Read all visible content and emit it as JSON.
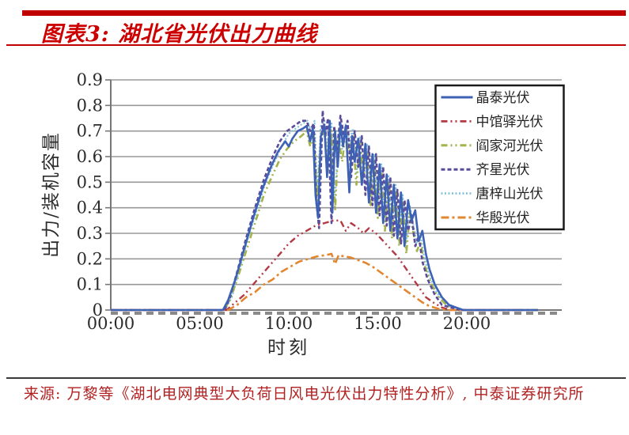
{
  "header": {
    "title": "图表3: 湖北省光伏出力曲线"
  },
  "footer": {
    "source": "来源: 万黎等《湖北电网典型大负荷日风电光伏出力特性分析》, 中泰证券研究所"
  },
  "chart_data": {
    "type": "line",
    "title": "湖北省光伏出力曲线",
    "xlabel": "时刻",
    "ylabel": "出力/装机容量",
    "x_unit": "hour_of_day",
    "xlim": [
      0,
      24
    ],
    "ylim": [
      0,
      0.9
    ],
    "grid": true,
    "legend_position": "upper-right",
    "ytick_labels": [
      "0",
      "0.1",
      "0.2",
      "0.3",
      "0.4",
      "0.5",
      "0.6",
      "0.7",
      "0.8",
      "0.9"
    ],
    "yticks": [
      0,
      0.1,
      0.2,
      0.3,
      0.4,
      0.5,
      0.6,
      0.7,
      0.8,
      0.9
    ],
    "xticks": [
      {
        "t": 0,
        "label": "00:00"
      },
      {
        "t": 5,
        "label": "05:00"
      },
      {
        "t": 10,
        "label": "10:00"
      },
      {
        "t": 15,
        "label": "15:00"
      },
      {
        "t": 20,
        "label": "20:00"
      }
    ],
    "draw_order": [
      4,
      2,
      3,
      1,
      5,
      0
    ],
    "series": [
      {
        "name": "晶泰光伏",
        "color": "#3d62b5",
        "dash": "",
        "width": 2.6,
        "points": [
          [
            0,
            0
          ],
          [
            6.3,
            0
          ],
          [
            6.6,
            0.04
          ],
          [
            7,
            0.12
          ],
          [
            7.5,
            0.24
          ],
          [
            8,
            0.36
          ],
          [
            8.5,
            0.47
          ],
          [
            9,
            0.56
          ],
          [
            9.4,
            0.62
          ],
          [
            9.8,
            0.66
          ],
          [
            10,
            0.64
          ],
          [
            10.2,
            0.67
          ],
          [
            10.5,
            0.7
          ],
          [
            10.8,
            0.71
          ],
          [
            11,
            0.72
          ],
          [
            11.2,
            0.66
          ],
          [
            11.35,
            0.71
          ],
          [
            11.5,
            0.45
          ],
          [
            11.65,
            0.36
          ],
          [
            11.8,
            0.68
          ],
          [
            12,
            0.72
          ],
          [
            12.15,
            0.52
          ],
          [
            12.3,
            0.74
          ],
          [
            12.45,
            0.38
          ],
          [
            12.6,
            0.7
          ],
          [
            12.75,
            0.56
          ],
          [
            12.9,
            0.73
          ],
          [
            13.05,
            0.64
          ],
          [
            13.2,
            0.72
          ],
          [
            13.4,
            0.46
          ],
          [
            13.55,
            0.68
          ],
          [
            13.7,
            0.58
          ],
          [
            13.9,
            0.67
          ],
          [
            14.1,
            0.49
          ],
          [
            14.3,
            0.65
          ],
          [
            14.5,
            0.42
          ],
          [
            14.7,
            0.61
          ],
          [
            14.9,
            0.38
          ],
          [
            15.1,
            0.57
          ],
          [
            15.3,
            0.34
          ],
          [
            15.5,
            0.53
          ],
          [
            15.7,
            0.31
          ],
          [
            15.9,
            0.49
          ],
          [
            16.1,
            0.28
          ],
          [
            16.3,
            0.46
          ],
          [
            16.5,
            0.25
          ],
          [
            16.7,
            0.43
          ],
          [
            16.9,
            0.35
          ],
          [
            17.1,
            0.39
          ],
          [
            17.3,
            0.27
          ],
          [
            17.5,
            0.31
          ],
          [
            17.7,
            0.22
          ],
          [
            17.9,
            0.16
          ],
          [
            18.2,
            0.1
          ],
          [
            18.6,
            0.05
          ],
          [
            19,
            0.02
          ],
          [
            19.4,
            0.01
          ],
          [
            19.8,
            0
          ],
          [
            24,
            0
          ]
        ]
      },
      {
        "name": "中馆驿光伏",
        "color": "#b33a45",
        "dash": "8 4 2 4 2 4",
        "width": 2.4,
        "points": [
          [
            0,
            0
          ],
          [
            6.5,
            0
          ],
          [
            7,
            0.03
          ],
          [
            7.5,
            0.06
          ],
          [
            8,
            0.1
          ],
          [
            8.5,
            0.14
          ],
          [
            9,
            0.18
          ],
          [
            9.5,
            0.22
          ],
          [
            10,
            0.26
          ],
          [
            10.5,
            0.29
          ],
          [
            11,
            0.31
          ],
          [
            11.5,
            0.33
          ],
          [
            12,
            0.34
          ],
          [
            12.5,
            0.35
          ],
          [
            12.9,
            0.35
          ],
          [
            13.2,
            0.31
          ],
          [
            13.5,
            0.34
          ],
          [
            13.9,
            0.32
          ],
          [
            14.2,
            0.3
          ],
          [
            14.5,
            0.32
          ],
          [
            14.9,
            0.3
          ],
          [
            15.3,
            0.27
          ],
          [
            15.7,
            0.24
          ],
          [
            16.1,
            0.21
          ],
          [
            16.5,
            0.17
          ],
          [
            16.9,
            0.13
          ],
          [
            17.3,
            0.09
          ],
          [
            17.7,
            0.05
          ],
          [
            18.1,
            0.03
          ],
          [
            18.6,
            0.01
          ],
          [
            19.1,
            0
          ],
          [
            24,
            0
          ]
        ]
      },
      {
        "name": "阎家河光伏",
        "color": "#a4b34a",
        "dash": "8 4 2 4 2 4",
        "width": 2.6,
        "points": [
          [
            0,
            0
          ],
          [
            6.35,
            0
          ],
          [
            6.7,
            0.04
          ],
          [
            7.1,
            0.12
          ],
          [
            7.6,
            0.23
          ],
          [
            8.1,
            0.34
          ],
          [
            8.6,
            0.45
          ],
          [
            9.1,
            0.53
          ],
          [
            9.5,
            0.59
          ],
          [
            9.9,
            0.63
          ],
          [
            10.3,
            0.66
          ],
          [
            10.7,
            0.68
          ],
          [
            11,
            0.7
          ],
          [
            11.2,
            0.64
          ],
          [
            11.4,
            0.69
          ],
          [
            11.6,
            0.43
          ],
          [
            11.8,
            0.66
          ],
          [
            12,
            0.71
          ],
          [
            12.2,
            0.55
          ],
          [
            12.4,
            0.7
          ],
          [
            12.6,
            0.39
          ],
          [
            12.8,
            0.67
          ],
          [
            13,
            0.58
          ],
          [
            13.2,
            0.7
          ],
          [
            13.4,
            0.61
          ],
          [
            13.6,
            0.68
          ],
          [
            13.8,
            0.49
          ],
          [
            14,
            0.65
          ],
          [
            14.2,
            0.52
          ],
          [
            14.4,
            0.62
          ],
          [
            14.6,
            0.41
          ],
          [
            14.8,
            0.58
          ],
          [
            15,
            0.36
          ],
          [
            15.2,
            0.54
          ],
          [
            15.4,
            0.31
          ],
          [
            15.6,
            0.5
          ],
          [
            15.8,
            0.28
          ],
          [
            16,
            0.46
          ],
          [
            16.2,
            0.25
          ],
          [
            16.4,
            0.42
          ],
          [
            16.6,
            0.22
          ],
          [
            16.8,
            0.38
          ],
          [
            17,
            0.3
          ],
          [
            17.2,
            0.23
          ],
          [
            17.4,
            0.27
          ],
          [
            17.6,
            0.18
          ],
          [
            17.9,
            0.12
          ],
          [
            18.3,
            0.06
          ],
          [
            18.7,
            0.03
          ],
          [
            19.1,
            0.01
          ],
          [
            19.5,
            0
          ],
          [
            24,
            0
          ]
        ]
      },
      {
        "name": "齐星光伏",
        "color": "#5a4b9b",
        "dash": "5 3",
        "width": 2.6,
        "points": [
          [
            0,
            0
          ],
          [
            6.4,
            0
          ],
          [
            6.7,
            0.05
          ],
          [
            7.1,
            0.15
          ],
          [
            7.6,
            0.28
          ],
          [
            8.1,
            0.4
          ],
          [
            8.6,
            0.51
          ],
          [
            9.1,
            0.6
          ],
          [
            9.5,
            0.66
          ],
          [
            9.9,
            0.7
          ],
          [
            10.3,
            0.72
          ],
          [
            10.7,
            0.74
          ],
          [
            11,
            0.74
          ],
          [
            11.2,
            0.7
          ],
          [
            11.4,
            0.73
          ],
          [
            11.55,
            0.42
          ],
          [
            11.7,
            0.32
          ],
          [
            11.9,
            0.78
          ],
          [
            12.05,
            0.68
          ],
          [
            12.2,
            0.75
          ],
          [
            12.4,
            0.34
          ],
          [
            12.55,
            0.72
          ],
          [
            12.7,
            0.62
          ],
          [
            12.9,
            0.76
          ],
          [
            13.1,
            0.68
          ],
          [
            13.3,
            0.74
          ],
          [
            13.5,
            0.52
          ],
          [
            13.7,
            0.7
          ],
          [
            13.9,
            0.56
          ],
          [
            14.1,
            0.68
          ],
          [
            14.3,
            0.45
          ],
          [
            14.5,
            0.64
          ],
          [
            14.7,
            0.41
          ],
          [
            14.9,
            0.61
          ],
          [
            15.1,
            0.37
          ],
          [
            15.3,
            0.56
          ],
          [
            15.5,
            0.33
          ],
          [
            15.7,
            0.52
          ],
          [
            15.9,
            0.29
          ],
          [
            16.1,
            0.47
          ],
          [
            16.3,
            0.26
          ],
          [
            16.5,
            0.43
          ],
          [
            16.7,
            0.31
          ],
          [
            16.9,
            0.37
          ],
          [
            17.1,
            0.25
          ],
          [
            17.3,
            0.29
          ],
          [
            17.5,
            0.19
          ],
          [
            17.8,
            0.12
          ],
          [
            18.2,
            0.06
          ],
          [
            18.6,
            0.02
          ],
          [
            19.1,
            0.01
          ],
          [
            19.6,
            0
          ],
          [
            24,
            0
          ]
        ]
      },
      {
        "name": "唐梓山光伏",
        "color": "#7ec3db",
        "dash": "2 2.5",
        "width": 2.2,
        "points": [
          [
            0,
            0
          ],
          [
            6.4,
            0
          ],
          [
            6.8,
            0.05
          ],
          [
            7.2,
            0.15
          ],
          [
            7.7,
            0.28
          ],
          [
            8.2,
            0.39
          ],
          [
            8.7,
            0.5
          ],
          [
            9.2,
            0.58
          ],
          [
            9.6,
            0.64
          ],
          [
            10,
            0.69
          ],
          [
            10.4,
            0.71
          ],
          [
            10.8,
            0.73
          ],
          [
            11.05,
            0.74
          ],
          [
            11.25,
            0.7
          ],
          [
            11.45,
            0.74
          ],
          [
            11.6,
            0.46
          ],
          [
            11.8,
            0.72
          ],
          [
            12,
            0.74
          ],
          [
            12.2,
            0.61
          ],
          [
            12.4,
            0.73
          ],
          [
            12.6,
            0.43
          ],
          [
            12.8,
            0.7
          ],
          [
            13,
            0.63
          ],
          [
            13.2,
            0.73
          ],
          [
            13.4,
            0.65
          ],
          [
            13.6,
            0.71
          ],
          [
            13.8,
            0.53
          ],
          [
            14,
            0.68
          ],
          [
            14.2,
            0.51
          ],
          [
            14.4,
            0.65
          ],
          [
            14.6,
            0.46
          ],
          [
            14.8,
            0.61
          ],
          [
            15,
            0.41
          ],
          [
            15.2,
            0.57
          ],
          [
            15.4,
            0.36
          ],
          [
            15.6,
            0.53
          ],
          [
            15.8,
            0.32
          ],
          [
            16,
            0.49
          ],
          [
            16.2,
            0.29
          ],
          [
            16.4,
            0.45
          ],
          [
            16.6,
            0.26
          ],
          [
            16.8,
            0.41
          ],
          [
            17,
            0.33
          ],
          [
            17.2,
            0.26
          ],
          [
            17.4,
            0.29
          ],
          [
            17.6,
            0.21
          ],
          [
            17.9,
            0.13
          ],
          [
            18.3,
            0.07
          ],
          [
            18.7,
            0.03
          ],
          [
            19.2,
            0.01
          ],
          [
            19.7,
            0
          ],
          [
            24,
            0
          ]
        ]
      },
      {
        "name": "华殷光伏",
        "color": "#e2862f",
        "dash": "10 4 3 4",
        "width": 2.6,
        "points": [
          [
            0,
            0
          ],
          [
            6.6,
            0
          ],
          [
            7.1,
            0.02
          ],
          [
            7.6,
            0.05
          ],
          [
            8.1,
            0.07
          ],
          [
            8.6,
            0.1
          ],
          [
            9.1,
            0.12
          ],
          [
            9.6,
            0.15
          ],
          [
            10.1,
            0.17
          ],
          [
            10.6,
            0.19
          ],
          [
            11.1,
            0.2
          ],
          [
            11.6,
            0.21
          ],
          [
            12.1,
            0.215
          ],
          [
            12.4,
            0.22
          ],
          [
            12.6,
            0.18
          ],
          [
            12.8,
            0.215
          ],
          [
            13.1,
            0.21
          ],
          [
            13.5,
            0.205
          ],
          [
            13.9,
            0.195
          ],
          [
            14.3,
            0.185
          ],
          [
            14.7,
            0.17
          ],
          [
            15.1,
            0.15
          ],
          [
            15.5,
            0.13
          ],
          [
            15.9,
            0.11
          ],
          [
            16.3,
            0.09
          ],
          [
            16.7,
            0.07
          ],
          [
            17.1,
            0.05
          ],
          [
            17.5,
            0.03
          ],
          [
            17.9,
            0.015
          ],
          [
            18.4,
            0.005
          ],
          [
            18.9,
            0
          ],
          [
            24,
            0
          ]
        ]
      }
    ]
  },
  "colors": {
    "header_accent": "#c00000",
    "title_text": "#cc0000",
    "source_text": "#b22222",
    "gridline": "#989898",
    "axis": "#777777",
    "legend_border": "#1a1a1a",
    "tick_text": "#2b2b2b"
  }
}
